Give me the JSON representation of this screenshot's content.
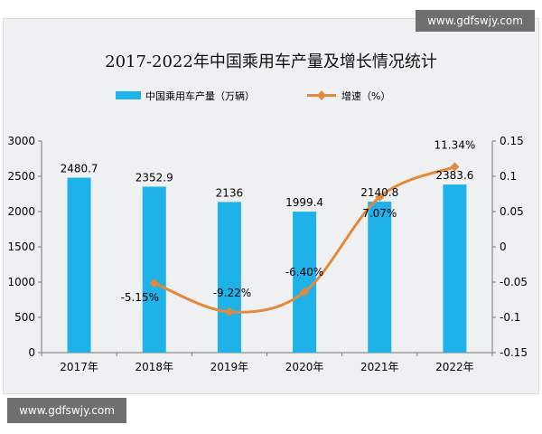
{
  "watermark": {
    "top": "www.gdfswjy.com",
    "bottom": "www.gdfswjy.com"
  },
  "chart_data": {
    "type": "bar",
    "title": "2017-2022年中国乘用车产量及增长情况统计",
    "categories": [
      "2017年",
      "2018年",
      "2019年",
      "2020年",
      "2021年",
      "2022年"
    ],
    "series": [
      {
        "name": "中国乘用车产量（万辆）",
        "type": "bar",
        "axis": "left",
        "values": [
          2480.7,
          2352.9,
          2136,
          1999.4,
          2140.8,
          2383.6
        ],
        "labels": [
          "2480.7",
          "2352.9",
          "2136",
          "1999.4",
          "2140.8",
          "2383.6"
        ],
        "color": "#1fb2e8"
      },
      {
        "name": "增速（%）",
        "type": "line",
        "axis": "right",
        "values": [
          null,
          -0.0515,
          -0.0922,
          -0.064,
          0.0707,
          0.1134
        ],
        "labels": [
          "",
          "-5.15%",
          "-9.22%",
          "-6.40%",
          "7.07%",
          "11.34%"
        ],
        "color": "#e2893c"
      }
    ],
    "y_left": {
      "lim": [
        0,
        3000
      ],
      "ticks": [
        0,
        500,
        1000,
        1500,
        2000,
        2500,
        3000
      ],
      "tick_labels": [
        "0",
        "500",
        "1000",
        "1500",
        "2000",
        "2500",
        "3000"
      ]
    },
    "y_right": {
      "lim": [
        -0.15,
        0.15
      ],
      "ticks": [
        -0.15,
        -0.1,
        -0.05,
        0,
        0.05,
        0.1,
        0.15
      ],
      "tick_labels": [
        "-0.15",
        "-0.1",
        "-0.05",
        "0",
        "0.05",
        "0.1",
        "0.15"
      ]
    },
    "legend_position": "top-center",
    "grid": false
  }
}
